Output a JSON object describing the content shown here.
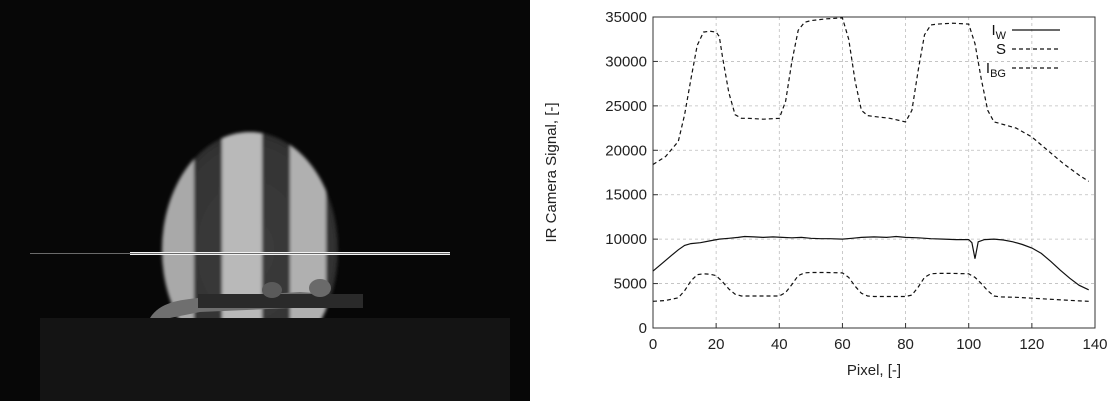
{
  "colors": {
    "photo_background": "#070707",
    "photo_disk": "#3b3b3b",
    "photo_stripe": "#b8b8b8",
    "series_line": "#111111",
    "grid": "#bdbdbd"
  },
  "chart_data": {
    "type": "line",
    "title": "",
    "xlabel": "Pixel, [-]",
    "ylabel": "IR Camera Signal, [-]",
    "xlim": [
      0,
      140
    ],
    "ylim": [
      0,
      35000
    ],
    "xticks": [
      0,
      20,
      40,
      60,
      80,
      100,
      120,
      140
    ],
    "yticks": [
      0,
      5000,
      10000,
      15000,
      20000,
      25000,
      30000,
      35000
    ],
    "grid": true,
    "legend_position": "top-right",
    "series": [
      {
        "name": "I",
        "name_subscript": "W",
        "style": "solid",
        "x": [
          0,
          3,
          6,
          8,
          10,
          12,
          15,
          18,
          21,
          24,
          27,
          29,
          32,
          35,
          38,
          41,
          44,
          47,
          50,
          53,
          56,
          60,
          63,
          66,
          70,
          74,
          77,
          80,
          84,
          88,
          92,
          96,
          100,
          101,
          102,
          103,
          105,
          108,
          111,
          114,
          117,
          120,
          123,
          126,
          129,
          132,
          135,
          138
        ],
        "y": [
          6400,
          7300,
          8200,
          8800,
          9300,
          9500,
          9600,
          9800,
          10000,
          10100,
          10200,
          10300,
          10250,
          10200,
          10250,
          10200,
          10150,
          10200,
          10100,
          10050,
          10050,
          10000,
          10100,
          10200,
          10250,
          10200,
          10300,
          10200,
          10150,
          10050,
          10000,
          9950,
          9950,
          9600,
          7800,
          9700,
          9950,
          10000,
          9900,
          9700,
          9400,
          9000,
          8400,
          7500,
          6500,
          5600,
          4800,
          4300
        ]
      },
      {
        "name": "S",
        "style": "dashed",
        "x": [
          0,
          4,
          8,
          10,
          12,
          14,
          16,
          18,
          20,
          21,
          22,
          24,
          26,
          28,
          30,
          35,
          40,
          42,
          44,
          46,
          48,
          50,
          55,
          60,
          62,
          64,
          66,
          68,
          70,
          75,
          80,
          82,
          84,
          86,
          88,
          90,
          95,
          100,
          102,
          104,
          106,
          108,
          110,
          115,
          120,
          125,
          130,
          135,
          138
        ],
        "y": [
          18400,
          19300,
          21000,
          24000,
          28000,
          31800,
          33300,
          33400,
          33300,
          32800,
          30500,
          26500,
          24000,
          23600,
          23600,
          23500,
          23600,
          25500,
          30000,
          33500,
          34400,
          34600,
          34800,
          34900,
          32500,
          27800,
          24500,
          23900,
          23800,
          23600,
          23200,
          24500,
          29000,
          33000,
          34100,
          34200,
          34300,
          34200,
          32000,
          28000,
          24500,
          23200,
          23000,
          22500,
          21500,
          20000,
          18500,
          17200,
          16500
        ]
      },
      {
        "name": "I",
        "name_subscript": "BG",
        "style": "dashed",
        "x": [
          0,
          4,
          8,
          10,
          12,
          14,
          16,
          18,
          20,
          22,
          24,
          26,
          28,
          30,
          35,
          40,
          42,
          44,
          46,
          48,
          50,
          55,
          60,
          62,
          64,
          66,
          68,
          70,
          75,
          80,
          82,
          84,
          86,
          88,
          90,
          95,
          100,
          102,
          104,
          106,
          108,
          110,
          115,
          120,
          125,
          130,
          135,
          138
        ],
        "y": [
          3000,
          3100,
          3400,
          4200,
          5300,
          6000,
          6100,
          6050,
          5900,
          5200,
          4400,
          3800,
          3600,
          3600,
          3600,
          3600,
          4000,
          4900,
          5900,
          6200,
          6250,
          6250,
          6200,
          5700,
          4700,
          3900,
          3600,
          3550,
          3550,
          3550,
          3700,
          4600,
          5700,
          6100,
          6150,
          6150,
          6100,
          5700,
          5000,
          4200,
          3600,
          3500,
          3450,
          3350,
          3250,
          3150,
          3050,
          3000
        ]
      }
    ]
  }
}
